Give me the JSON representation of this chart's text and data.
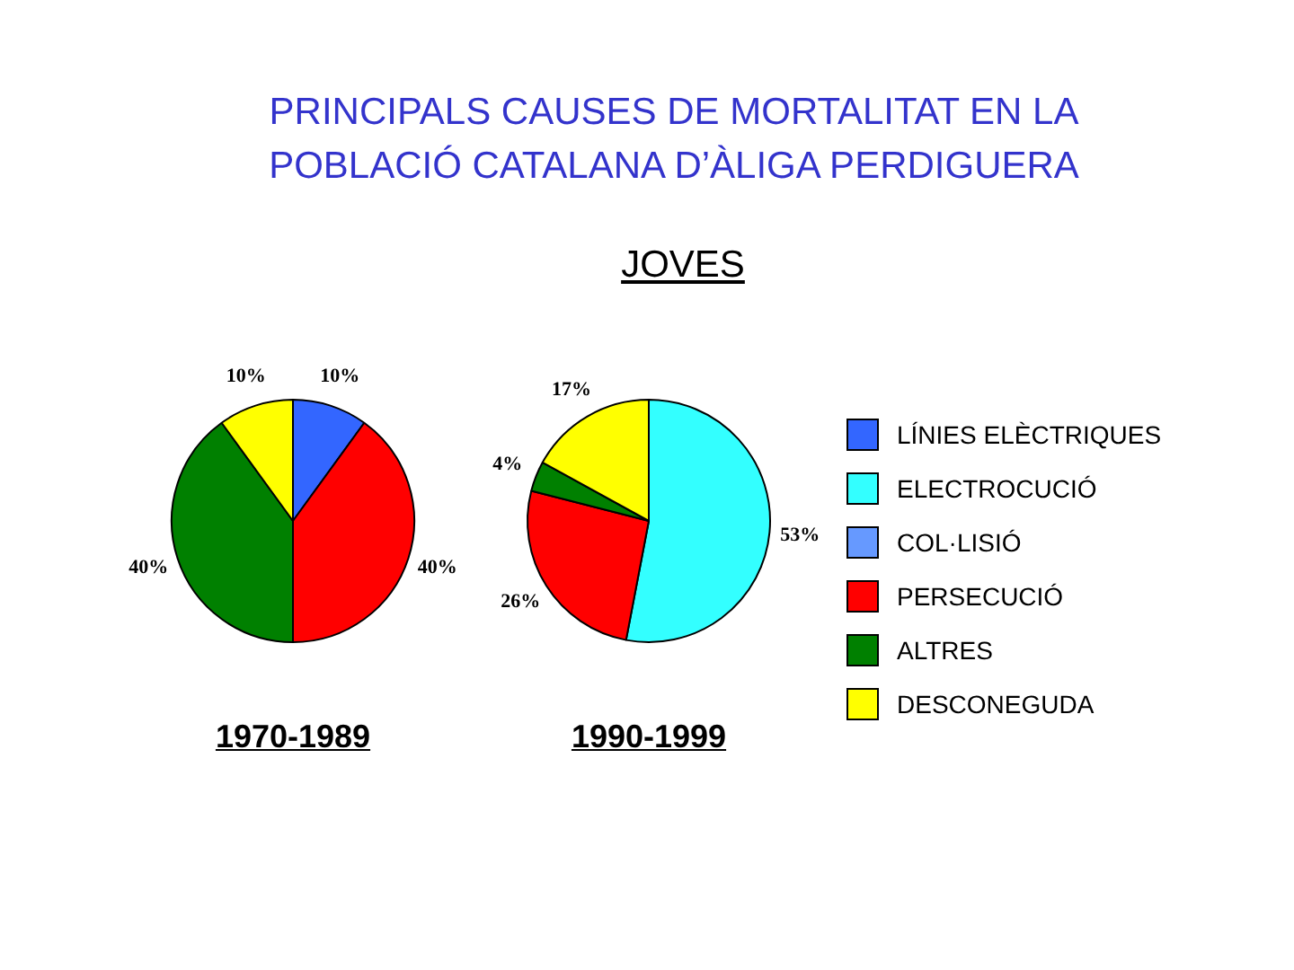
{
  "chart_data": [
    {
      "type": "pie",
      "xlabel": "1970-1989",
      "categories": [
        null,
        null,
        null,
        null,
        null,
        null
      ],
      "values": [
        10,
        null,
        null,
        40,
        40,
        10
      ],
      "value_labels": [
        "10%",
        null,
        null,
        "40%",
        "40%",
        "10%"
      ],
      "colors": [
        "#3366ff",
        "#33ffff",
        "#6699ff",
        "#ff0000",
        "#008000",
        "#ffff00"
      ]
    },
    {
      "type": "pie",
      "title": "PRINCIPALS CAUSES DE MORTALITAT EN LA POBLACIÓ CATALANA D’ÀLIGA PERDIGUERA",
      "subtitle": "JOVES",
      "xlabel": "1990-1999",
      "legend": "right",
      "categories": [
        "LÍNIES ELÈCTRIQUES",
        "ELECTROCUCIÓ",
        "COL·LISIÓ",
        "PERSECUCIÓ",
        "ALTRES",
        "DESCONEGUDA"
      ],
      "values": [
        null,
        53,
        null,
        26,
        4,
        17
      ],
      "value_labels": [
        null,
        "53%",
        null,
        "26%",
        "4%",
        "17%"
      ],
      "colors": [
        "#3366ff",
        "#33ffff",
        "#6699ff",
        "#ff0000",
        "#008000",
        "#ffff00"
      ]
    }
  ]
}
